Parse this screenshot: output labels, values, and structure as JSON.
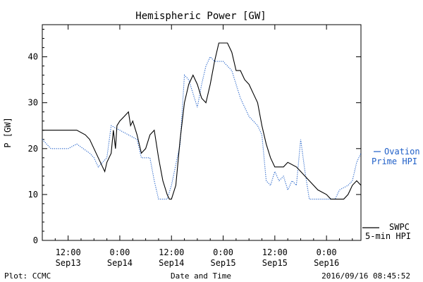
{
  "chart_data": {
    "type": "line",
    "title": "Hemispheric Power [GW]",
    "xlabel": "Date and Time",
    "ylabel": "P [GW]",
    "ylim": [
      0,
      47
    ],
    "xlim": [
      "2016-09-13 06:00",
      "2016-09-16 08:00"
    ],
    "y_ticks": [
      0,
      10,
      20,
      30,
      40
    ],
    "x_ticks": [
      {
        "t": "2016-09-13 12:00",
        "line1": "12:00",
        "line2": "Sep13"
      },
      {
        "t": "2016-09-14 00:00",
        "line1": "0:00",
        "line2": "Sep14"
      },
      {
        "t": "2016-09-14 12:00",
        "line1": "12:00",
        "line2": "Sep14"
      },
      {
        "t": "2016-09-15 00:00",
        "line1": "0:00",
        "line2": "Sep15"
      },
      {
        "t": "2016-09-15 12:00",
        "line1": "12:00",
        "line2": "Sep15"
      },
      {
        "t": "2016-09-16 00:00",
        "line1": "0:00",
        "line2": "Sep16"
      }
    ],
    "grid": false,
    "series": [
      {
        "name": "Ovation Prime HPI",
        "style": "dotted",
        "color": "#1f5fc8",
        "legend_lines": [
          "Ovation",
          "Prime HPI"
        ],
        "points": [
          [
            "2016-09-13 06:00",
            22
          ],
          [
            "2016-09-13 08:00",
            20
          ],
          [
            "2016-09-13 12:00",
            20
          ],
          [
            "2016-09-13 14:00",
            21
          ],
          [
            "2016-09-13 17:00",
            19
          ],
          [
            "2016-09-13 18:00",
            18
          ],
          [
            "2016-09-13 19:00",
            16
          ],
          [
            "2016-09-13 21:00",
            18
          ],
          [
            "2016-09-13 22:00",
            25
          ],
          [
            "2016-09-14 00:00",
            24
          ],
          [
            "2016-09-14 04:00",
            22
          ],
          [
            "2016-09-14 05:00",
            18
          ],
          [
            "2016-09-14 07:00",
            18
          ],
          [
            "2016-09-14 08:00",
            13
          ],
          [
            "2016-09-14 09:00",
            9
          ],
          [
            "2016-09-14 11:00",
            9
          ],
          [
            "2016-09-14 12:00",
            12
          ],
          [
            "2016-09-14 14:00",
            21
          ],
          [
            "2016-09-14 15:00",
            36
          ],
          [
            "2016-09-14 16:00",
            35
          ],
          [
            "2016-09-14 18:00",
            29
          ],
          [
            "2016-09-14 19:00",
            34
          ],
          [
            "2016-09-14 20:00",
            38
          ],
          [
            "2016-09-14 21:00",
            40
          ],
          [
            "2016-09-14 22:00",
            39
          ],
          [
            "2016-09-15 00:00",
            39
          ],
          [
            "2016-09-15 01:00",
            38
          ],
          [
            "2016-09-15 02:00",
            37
          ],
          [
            "2016-09-15 04:00",
            31
          ],
          [
            "2016-09-15 05:00",
            29
          ],
          [
            "2016-09-15 06:00",
            27
          ],
          [
            "2016-09-15 08:00",
            25
          ],
          [
            "2016-09-15 09:00",
            23
          ],
          [
            "2016-09-15 10:00",
            13
          ],
          [
            "2016-09-15 11:00",
            12
          ],
          [
            "2016-09-15 12:00",
            15
          ],
          [
            "2016-09-15 13:00",
            13
          ],
          [
            "2016-09-15 14:00",
            14
          ],
          [
            "2016-09-15 15:00",
            11
          ],
          [
            "2016-09-15 16:00",
            13
          ],
          [
            "2016-09-15 17:00",
            12
          ],
          [
            "2016-09-15 18:00",
            22
          ],
          [
            "2016-09-15 19:00",
            15
          ],
          [
            "2016-09-15 20:00",
            9
          ],
          [
            "2016-09-16 02:00",
            9
          ],
          [
            "2016-09-16 03:00",
            11
          ],
          [
            "2016-09-16 05:00",
            12
          ],
          [
            "2016-09-16 06:00",
            13
          ],
          [
            "2016-09-16 07:00",
            17
          ],
          [
            "2016-09-16 08:00",
            19
          ]
        ]
      },
      {
        "name": "SWPC 5-min HPI",
        "style": "solid",
        "color": "#000000",
        "legend_lines": [
          "SWPC",
          "5-min HPI"
        ],
        "points": [
          [
            "2016-09-13 06:00",
            24
          ],
          [
            "2016-09-13 12:00",
            24
          ],
          [
            "2016-09-13 14:00",
            24
          ],
          [
            "2016-09-13 16:00",
            23
          ],
          [
            "2016-09-13 17:00",
            22
          ],
          [
            "2016-09-13 18:00",
            20
          ],
          [
            "2016-09-13 19:00",
            18
          ],
          [
            "2016-09-13 20:00",
            16
          ],
          [
            "2016-09-13 20:30",
            15
          ],
          [
            "2016-09-13 21:00",
            17
          ],
          [
            "2016-09-13 22:00",
            19
          ],
          [
            "2016-09-13 22:30",
            24
          ],
          [
            "2016-09-13 23:00",
            20
          ],
          [
            "2016-09-13 23:20",
            25
          ],
          [
            "2016-09-14 00:00",
            26
          ],
          [
            "2016-09-14 01:00",
            27
          ],
          [
            "2016-09-14 02:00",
            28
          ],
          [
            "2016-09-14 02:30",
            25
          ],
          [
            "2016-09-14 03:00",
            26
          ],
          [
            "2016-09-14 04:00",
            23
          ],
          [
            "2016-09-14 05:00",
            19
          ],
          [
            "2016-09-14 06:00",
            20
          ],
          [
            "2016-09-14 07:00",
            23
          ],
          [
            "2016-09-14 08:00",
            24
          ],
          [
            "2016-09-14 09:00",
            18
          ],
          [
            "2016-09-14 10:00",
            13
          ],
          [
            "2016-09-14 11:00",
            10
          ],
          [
            "2016-09-14 11:30",
            9
          ],
          [
            "2016-09-14 12:00",
            9
          ],
          [
            "2016-09-14 13:00",
            12
          ],
          [
            "2016-09-14 14:00",
            22
          ],
          [
            "2016-09-14 15:00",
            30
          ],
          [
            "2016-09-14 16:00",
            34
          ],
          [
            "2016-09-14 17:00",
            36
          ],
          [
            "2016-09-14 18:00",
            34
          ],
          [
            "2016-09-14 19:00",
            31
          ],
          [
            "2016-09-14 20:00",
            30
          ],
          [
            "2016-09-14 21:00",
            34
          ],
          [
            "2016-09-14 22:00",
            39
          ],
          [
            "2016-09-14 23:00",
            43
          ],
          [
            "2016-09-15 00:00",
            43
          ],
          [
            "2016-09-15 01:00",
            43
          ],
          [
            "2016-09-15 02:00",
            41
          ],
          [
            "2016-09-15 03:00",
            37
          ],
          [
            "2016-09-15 04:00",
            37
          ],
          [
            "2016-09-15 05:00",
            35
          ],
          [
            "2016-09-15 06:00",
            34
          ],
          [
            "2016-09-15 07:00",
            32
          ],
          [
            "2016-09-15 08:00",
            30
          ],
          [
            "2016-09-15 09:00",
            25
          ],
          [
            "2016-09-15 10:00",
            21
          ],
          [
            "2016-09-15 11:00",
            18
          ],
          [
            "2016-09-15 12:00",
            16
          ],
          [
            "2016-09-15 13:00",
            16
          ],
          [
            "2016-09-15 14:00",
            16
          ],
          [
            "2016-09-15 15:00",
            17
          ],
          [
            "2016-09-15 17:00",
            16
          ],
          [
            "2016-09-15 18:00",
            15
          ],
          [
            "2016-09-15 20:00",
            13
          ],
          [
            "2016-09-15 22:00",
            11
          ],
          [
            "2016-09-16 00:00",
            10
          ],
          [
            "2016-09-16 01:00",
            9
          ],
          [
            "2016-09-16 04:00",
            9
          ],
          [
            "2016-09-16 05:00",
            10
          ],
          [
            "2016-09-16 06:00",
            12
          ],
          [
            "2016-09-16 07:00",
            13
          ],
          [
            "2016-09-16 08:00",
            12
          ]
        ]
      }
    ]
  },
  "footer": {
    "left": "Plot: CCMC",
    "center": "Date and Time",
    "right": "2016/09/16 08:45:52"
  }
}
